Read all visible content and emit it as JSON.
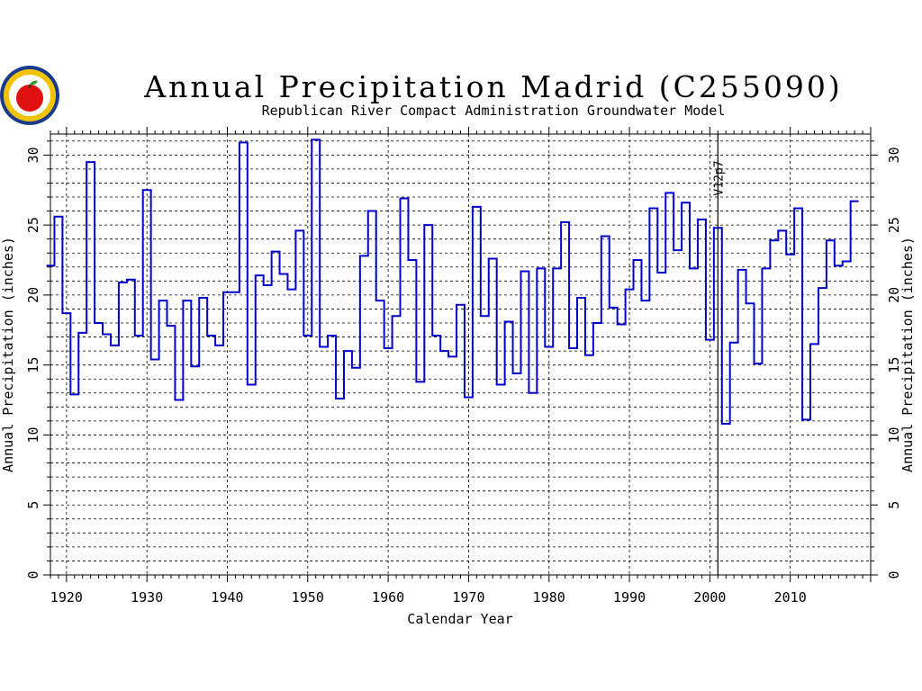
{
  "logo": {
    "icon": "apple-seal-logo-icon"
  },
  "chart_data": {
    "type": "line",
    "step": true,
    "title": "Annual Precipitation Madrid (C255090)",
    "subtitle": "Republican River Compact Administration Groundwater Model",
    "xlabel": "Calendar Year",
    "ylabel": "Annual Precipitation (inches)",
    "ylabel_right": "Annual Precipitation (inches)",
    "xlim": [
      1918,
      2020
    ],
    "ylim": [
      0,
      31.5
    ],
    "xticks": [
      "1920",
      "1930",
      "1940",
      "1950",
      "1960",
      "1970",
      "1980",
      "1990",
      "2000",
      "2010"
    ],
    "yticks": [
      "0",
      "5",
      "10",
      "15",
      "20",
      "25",
      "30"
    ],
    "grid": true,
    "annotation": {
      "label": "V12p7",
      "x": 2001
    },
    "line_color": "#0000cc",
    "x": [
      1918,
      1919,
      1920,
      1921,
      1922,
      1923,
      1924,
      1925,
      1926,
      1927,
      1928,
      1929,
      1930,
      1931,
      1932,
      1933,
      1934,
      1935,
      1936,
      1937,
      1938,
      1939,
      1940,
      1941,
      1942,
      1943,
      1944,
      1945,
      1946,
      1947,
      1948,
      1949,
      1950,
      1951,
      1952,
      1953,
      1954,
      1955,
      1956,
      1957,
      1958,
      1959,
      1960,
      1961,
      1962,
      1963,
      1964,
      1965,
      1966,
      1967,
      1968,
      1969,
      1970,
      1971,
      1972,
      1973,
      1974,
      1975,
      1976,
      1977,
      1978,
      1979,
      1980,
      1981,
      1982,
      1983,
      1984,
      1985,
      1986,
      1987,
      1988,
      1989,
      1990,
      1991,
      1992,
      1993,
      1994,
      1995,
      1996,
      1997,
      1998,
      1999,
      2000,
      2001,
      2002,
      2003,
      2004,
      2005,
      2006,
      2007,
      2008,
      2009,
      2010,
      2011,
      2012,
      2013,
      2014,
      2015,
      2016,
      2017,
      2018
    ],
    "values": [
      22.1,
      25.6,
      18.7,
      12.9,
      17.3,
      29.5,
      18.0,
      17.2,
      16.4,
      20.9,
      21.1,
      17.1,
      27.5,
      15.4,
      19.6,
      17.8,
      12.5,
      19.6,
      14.9,
      19.8,
      17.1,
      16.4,
      20.2,
      20.2,
      30.9,
      13.6,
      21.4,
      20.7,
      23.1,
      21.5,
      20.4,
      24.6,
      17.1,
      31.1,
      16.3,
      17.1,
      12.6,
      16.0,
      14.8,
      22.8,
      26.0,
      19.6,
      16.2,
      18.5,
      26.9,
      22.5,
      13.8,
      25.0,
      17.1,
      16.0,
      15.6,
      19.3,
      12.7,
      26.3,
      18.5,
      22.6,
      13.6,
      18.1,
      14.4,
      21.7,
      13.0,
      21.9,
      16.3,
      21.9,
      25.2,
      16.2,
      19.8,
      15.7,
      18.0,
      24.2,
      19.1,
      17.9,
      20.4,
      22.5,
      19.6,
      26.2,
      21.6,
      27.3,
      23.2,
      26.6,
      21.9,
      25.4,
      16.8,
      24.8,
      10.8,
      16.6,
      21.8,
      19.4,
      15.1,
      21.9,
      23.9,
      24.6,
      22.9,
      26.2,
      11.1,
      16.5,
      20.5,
      23.9,
      22.1,
      22.4,
      26.7
    ]
  }
}
